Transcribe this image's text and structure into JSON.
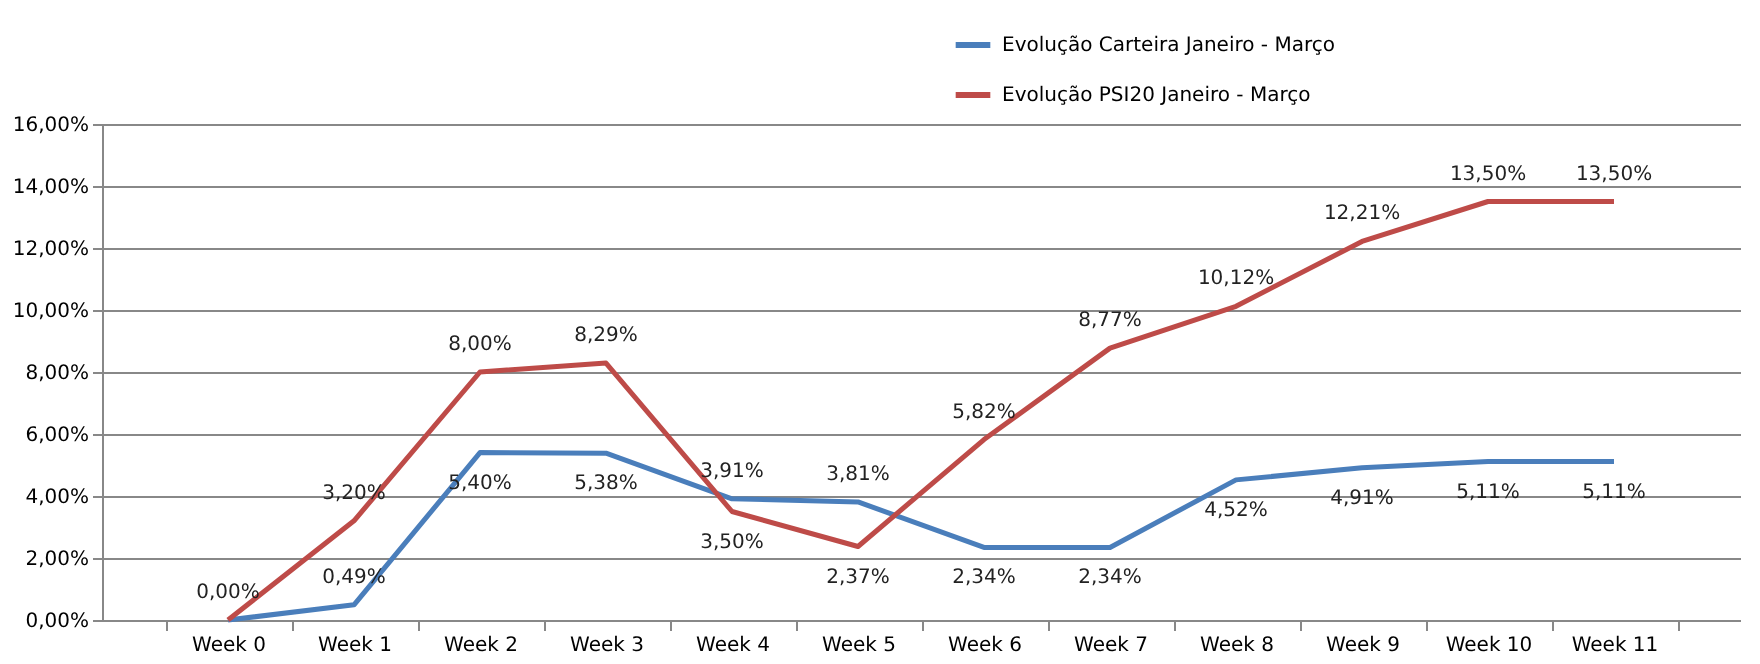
{
  "chart_data": {
    "type": "line",
    "categories": [
      "Week 0",
      "Week 1",
      "Week 2",
      "Week 3",
      "Week 4",
      "Week 5",
      "Week 6",
      "Week 7",
      "Week 8",
      "Week 9",
      "Week 10",
      "Week 11"
    ],
    "series": [
      {
        "name": "Evolução Carteira Janeiro - Março",
        "color": "#4a7ebb",
        "values": [
          0,
          0.49,
          5.4,
          5.38,
          3.91,
          3.81,
          2.34,
          2.34,
          4.52,
          4.91,
          5.11,
          5.11
        ],
        "value_labels": [
          "0,00%",
          "0,49%",
          "5,40%",
          "5,38%",
          "3,91%",
          "3,81%",
          "2,34%",
          "2,34%",
          "4,52%",
          "4,91%",
          "5,11%",
          "5,11%"
        ]
      },
      {
        "name": "Evolução PSI20 Janeiro - Março",
        "color": "#be4b48",
        "values": [
          0,
          3.2,
          8.0,
          8.29,
          3.5,
          2.37,
          5.82,
          8.77,
          10.12,
          12.21,
          13.5,
          13.5
        ],
        "value_labels": [
          null,
          "3,20%",
          "8,00%",
          "8,29%",
          "3,50%",
          "2,37%",
          "5,82%",
          "8,77%",
          "10,12%",
          "12,21%",
          "13,50%",
          "13,50%"
        ]
      }
    ],
    "ylim": [
      0,
      16
    ],
    "yticks": [
      {
        "value": 0,
        "label": "0,00%"
      },
      {
        "value": 2,
        "label": "2,00%"
      },
      {
        "value": 4,
        "label": "4,00%"
      },
      {
        "value": 6,
        "label": "6,00%"
      },
      {
        "value": 8,
        "label": "8,00%"
      },
      {
        "value": 10,
        "label": "10,00%"
      },
      {
        "value": 12,
        "label": "12,00%"
      },
      {
        "value": 14,
        "label": "14,00%"
      },
      {
        "value": 16,
        "label": "16,00%"
      }
    ],
    "grid": "y",
    "legend": "top right",
    "marker": "none",
    "line_style": "solid"
  }
}
